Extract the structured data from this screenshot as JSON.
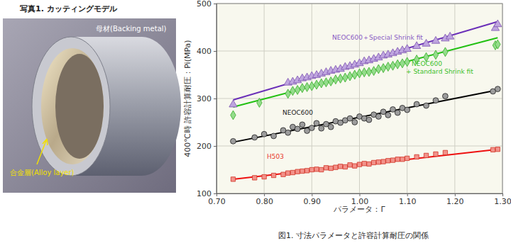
{
  "chart_data": {
    "type": "scatter",
    "title": "図1. 寸法パラメータと許容計算耐圧の関係",
    "x_label": "パラメータ：Γ",
    "y_label": "400℃時 許容計算耐圧：Pi(MPa)",
    "xlim": [
      0.7,
      1.3
    ],
    "ylim": [
      100,
      500
    ],
    "xticks": [
      {
        "value": 0.7,
        "label": "0.70"
      },
      {
        "value": 0.8,
        "label": "0.80"
      },
      {
        "value": 0.9,
        "label": "0.90"
      },
      {
        "value": 1.0,
        "label": "1.00"
      },
      {
        "value": 1.1,
        "label": "1.10"
      },
      {
        "value": 1.2,
        "label": "1.20"
      },
      {
        "value": 1.3,
        "label": "1.30"
      }
    ],
    "yticks": [
      100,
      200,
      300,
      400,
      500
    ],
    "grid": true,
    "series": [
      {
        "name": "NEOC600＋Special Shrink fit",
        "type": "scatter",
        "marker": "triangle",
        "color": "#8a5cc4",
        "x": [
          0.735,
          0.85,
          0.86,
          0.87,
          0.88,
          0.89,
          0.9,
          0.91,
          0.92,
          0.93,
          0.94,
          0.95,
          0.96,
          0.97,
          0.98,
          0.99,
          1.0,
          1.01,
          1.02,
          1.03,
          1.04,
          1.05,
          1.06,
          1.07,
          1.08,
          1.09,
          1.1,
          1.12,
          1.14,
          1.16,
          1.18,
          1.19,
          1.285,
          1.29
        ],
        "values": [
          287,
          333,
          335,
          338,
          342,
          344,
          347,
          349,
          352,
          355,
          358,
          360,
          362,
          366,
          368,
          371,
          374,
          378,
          380,
          383,
          386,
          390,
          392,
          395,
          398,
          401,
          404,
          410,
          415,
          421,
          426,
          430,
          448,
          456
        ]
      },
      {
        "name": "NEOC600\n+ Standard Shrink fit",
        "type": "scatter",
        "marker": "diamond",
        "color": "#3cc02c",
        "x": [
          0.735,
          0.79,
          0.85,
          0.86,
          0.87,
          0.88,
          0.89,
          0.9,
          0.91,
          0.92,
          0.93,
          0.94,
          0.95,
          0.96,
          0.97,
          0.98,
          0.99,
          1.0,
          1.01,
          1.02,
          1.03,
          1.04,
          1.05,
          1.06,
          1.07,
          1.08,
          1.09,
          1.1,
          1.12,
          1.14,
          1.16,
          1.18,
          1.285,
          1.29
        ],
        "values": [
          265,
          291,
          310,
          316,
          318,
          322,
          324,
          326,
          329,
          332,
          334,
          336,
          340,
          342,
          344,
          347,
          350,
          353,
          355,
          356,
          358,
          362,
          364,
          367,
          369,
          372,
          374,
          377,
          382,
          387,
          392,
          398,
          412,
          414
        ]
      },
      {
        "name": "NEOC600",
        "type": "scatter",
        "marker": "circle",
        "color": "#222222",
        "x": [
          0.735,
          0.78,
          0.8,
          0.82,
          0.84,
          0.85,
          0.86,
          0.87,
          0.88,
          0.89,
          0.9,
          0.91,
          0.92,
          0.93,
          0.94,
          0.95,
          0.96,
          0.97,
          0.98,
          0.99,
          1.0,
          1.01,
          1.02,
          1.03,
          1.04,
          1.05,
          1.06,
          1.07,
          1.08,
          1.09,
          1.1,
          1.12,
          1.14,
          1.16,
          1.18,
          1.28,
          1.29
        ],
        "values": [
          210,
          218,
          225,
          221,
          233,
          228,
          240,
          236,
          245,
          232,
          238,
          248,
          237,
          246,
          240,
          252,
          249,
          254,
          258,
          250,
          262,
          258,
          255,
          266,
          262,
          272,
          265,
          277,
          270,
          280,
          276,
          288,
          285,
          296,
          305,
          315,
          320
        ]
      },
      {
        "name": "H503",
        "type": "scatter",
        "marker": "square",
        "color": "#e8382a",
        "x": [
          0.735,
          0.78,
          0.8,
          0.82,
          0.84,
          0.85,
          0.86,
          0.87,
          0.88,
          0.89,
          0.9,
          0.91,
          0.92,
          0.93,
          0.94,
          0.95,
          0.96,
          0.97,
          0.98,
          0.99,
          1.0,
          1.01,
          1.02,
          1.03,
          1.04,
          1.05,
          1.06,
          1.07,
          1.08,
          1.09,
          1.1,
          1.12,
          1.14,
          1.16,
          1.18,
          1.28,
          1.29
        ],
        "values": [
          130,
          133,
          135,
          138,
          140,
          143,
          144,
          146,
          147,
          148,
          150,
          151,
          150,
          154,
          153,
          155,
          157,
          156,
          160,
          158,
          161,
          163,
          162,
          165,
          166,
          167,
          169,
          170,
          172,
          172,
          174,
          177,
          180,
          183,
          186,
          192,
          193
        ]
      },
      {
        "type": "line",
        "color": "#6a2fb8",
        "x": [
          0.735,
          1.29
        ],
        "values": [
          297,
          462
        ]
      },
      {
        "type": "line",
        "color": "#22c012",
        "x": [
          0.735,
          1.29
        ],
        "values": [
          282,
          428
        ]
      },
      {
        "type": "line",
        "color": "#000000",
        "x": [
          0.735,
          1.29
        ],
        "values": [
          208,
          318
        ]
      },
      {
        "type": "line",
        "color": "#ee1010",
        "x": [
          0.735,
          1.29
        ],
        "values": [
          130,
          193
        ]
      }
    ]
  },
  "photo": {
    "title": "写真1. カッティングモデル",
    "backing_label": "母材(Backing metal)",
    "alloy_label": "合金層(Alloy layer)"
  }
}
